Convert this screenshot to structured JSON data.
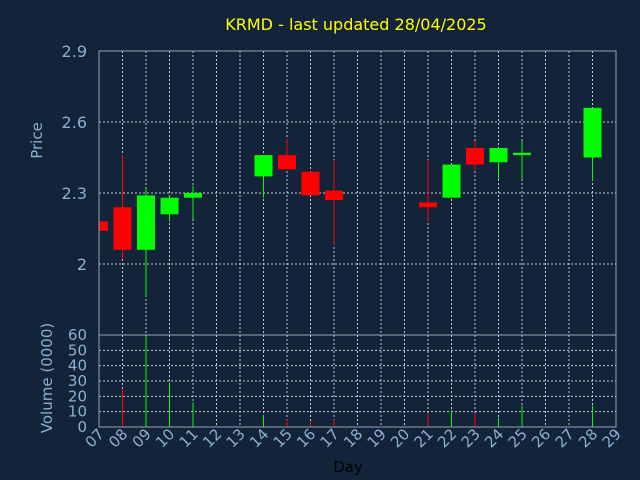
{
  "title": "KRMD - last updated 28/04/2025",
  "colors": {
    "background": "#13233a",
    "title": "#ffff00",
    "axis_text": "#8cb0d2",
    "grid": "#c8c8c8",
    "frame": "#9aa3ad",
    "up": "#00ff00",
    "down": "#ff0000",
    "xlabel": "#000000"
  },
  "chart_data": [
    {
      "type": "candlestick",
      "ylabel": "Price",
      "ylim": [
        1.7,
        2.9
      ],
      "yticks": [
        2,
        2.3,
        2.6,
        2.9
      ],
      "xlim": [
        7,
        29
      ],
      "grid": true,
      "candles": [
        {
          "day": 7,
          "open": 2.18,
          "high": 2.18,
          "low": 2.14,
          "close": 2.14
        },
        {
          "day": 8,
          "open": 2.24,
          "high": 2.46,
          "low": 2.02,
          "close": 2.06
        },
        {
          "day": 9,
          "open": 2.06,
          "high": 2.32,
          "low": 1.86,
          "close": 2.29
        },
        {
          "day": 10,
          "open": 2.21,
          "high": 2.29,
          "low": 2.18,
          "close": 2.28
        },
        {
          "day": 11,
          "open": 2.28,
          "high": 2.33,
          "low": 2.19,
          "close": 2.3
        },
        {
          "day": 14,
          "open": 2.37,
          "high": 2.46,
          "low": 2.28,
          "close": 2.46
        },
        {
          "day": 15,
          "open": 2.46,
          "high": 2.53,
          "low": 2.4,
          "close": 2.4
        },
        {
          "day": 16,
          "open": 2.39,
          "high": 2.39,
          "low": 2.29,
          "close": 2.29
        },
        {
          "day": 17,
          "open": 2.31,
          "high": 2.44,
          "low": 2.08,
          "close": 2.27
        },
        {
          "day": 21,
          "open": 2.26,
          "high": 2.44,
          "low": 2.18,
          "close": 2.24
        },
        {
          "day": 22,
          "open": 2.28,
          "high": 2.42,
          "low": 2.28,
          "close": 2.42
        },
        {
          "day": 23,
          "open": 2.49,
          "high": 2.52,
          "low": 2.4,
          "close": 2.42
        },
        {
          "day": 24,
          "open": 2.43,
          "high": 2.49,
          "low": 2.36,
          "close": 2.49
        },
        {
          "day": 25,
          "open": 2.46,
          "high": 2.52,
          "low": 2.36,
          "close": 2.47
        },
        {
          "day": 28,
          "open": 2.45,
          "high": 2.66,
          "low": 2.35,
          "close": 2.66
        }
      ]
    },
    {
      "type": "bar",
      "ylabel": "Volume (0000)",
      "xlabel": "Day",
      "ylim": [
        0,
        60
      ],
      "yticks": [
        0,
        10,
        20,
        30,
        40,
        50,
        60
      ],
      "xlim": [
        7,
        29
      ],
      "xticks": [
        "07",
        "08",
        "09",
        "10",
        "11",
        "12",
        "13",
        "14",
        "15",
        "16",
        "17",
        "18",
        "19",
        "20",
        "21",
        "22",
        "23",
        "24",
        "25",
        "26",
        "27",
        "28",
        "29"
      ],
      "grid": true,
      "bars": [
        {
          "day": 8,
          "value": 25,
          "direction": "down"
        },
        {
          "day": 9,
          "value": 59,
          "direction": "up"
        },
        {
          "day": 10,
          "value": 29,
          "direction": "up"
        },
        {
          "day": 11,
          "value": 16,
          "direction": "up"
        },
        {
          "day": 14,
          "value": 8,
          "direction": "up"
        },
        {
          "day": 15,
          "value": 5,
          "direction": "down"
        },
        {
          "day": 16,
          "value": 4,
          "direction": "down"
        },
        {
          "day": 17,
          "value": 5,
          "direction": "down"
        },
        {
          "day": 21,
          "value": 9,
          "direction": "down"
        },
        {
          "day": 22,
          "value": 11,
          "direction": "up"
        },
        {
          "day": 23,
          "value": 9,
          "direction": "down"
        },
        {
          "day": 24,
          "value": 6,
          "direction": "up"
        },
        {
          "day": 25,
          "value": 14,
          "direction": "up"
        },
        {
          "day": 28,
          "value": 14,
          "direction": "up"
        }
      ]
    }
  ]
}
